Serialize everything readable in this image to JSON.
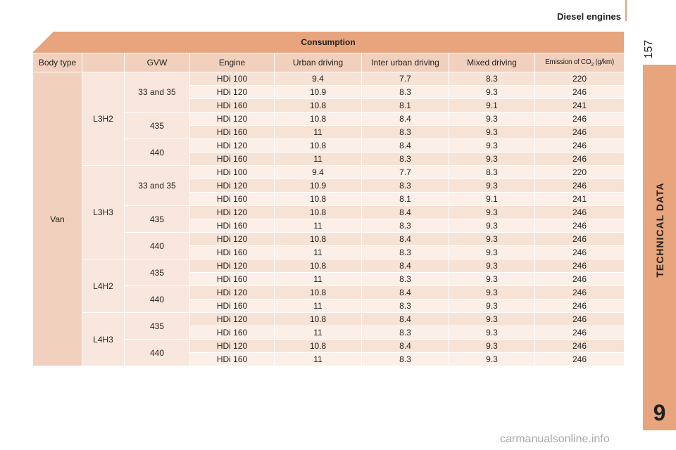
{
  "header": {
    "title": "Diesel engines",
    "page_number": "157"
  },
  "side_tab": {
    "label": "TECHNICAL DATA",
    "chapter": "9"
  },
  "table": {
    "title": "Consumption",
    "columns": [
      "Body type",
      "GVW",
      "Engine",
      "Urban driving",
      "Inter urban driving",
      "Mixed driving",
      "Emission of CO",
      "2",
      " (g/km)"
    ],
    "body_type": "Van",
    "groups": [
      {
        "length": "L3H2",
        "gvw": [
          {
            "label": "33 and 35",
            "rows": [
              [
                "HDi 100",
                "9.4",
                "7.7",
                "8.3",
                "220"
              ],
              [
                "HDi 120",
                "10.9",
                "8.3",
                "9.3",
                "246"
              ],
              [
                "HDi 160",
                "10.8",
                "8.1",
                "9.1",
                "241"
              ]
            ]
          },
          {
            "label": "435",
            "rows": [
              [
                "HDi 120",
                "10.8",
                "8.4",
                "9.3",
                "246"
              ],
              [
                "HDi 160",
                "11",
                "8.3",
                "9.3",
                "246"
              ]
            ]
          },
          {
            "label": "440",
            "rows": [
              [
                "HDi 120",
                "10.8",
                "8.4",
                "9.3",
                "246"
              ],
              [
                "HDi 160",
                "11",
                "8.3",
                "9.3",
                "246"
              ]
            ]
          }
        ]
      },
      {
        "length": "L3H3",
        "gvw": [
          {
            "label": "33 and 35",
            "rows": [
              [
                "HDi 100",
                "9.4",
                "7.7",
                "8.3",
                "220"
              ],
              [
                "HDi 120",
                "10.9",
                "8.3",
                "9.3",
                "246"
              ],
              [
                "HDi 160",
                "10.8",
                "8.1",
                "9.1",
                "241"
              ]
            ]
          },
          {
            "label": "435",
            "rows": [
              [
                "HDi 120",
                "10.8",
                "8.4",
                "9.3",
                "246"
              ],
              [
                "HDi 160",
                "11",
                "8.3",
                "9.3",
                "246"
              ]
            ]
          },
          {
            "label": "440",
            "rows": [
              [
                "HDi 120",
                "10.8",
                "8.4",
                "9.3",
                "246"
              ],
              [
                "HDi 160",
                "11",
                "8.3",
                "9.3",
                "246"
              ]
            ]
          }
        ]
      },
      {
        "length": "L4H2",
        "gvw": [
          {
            "label": "435",
            "rows": [
              [
                "HDi 120",
                "10.8",
                "8.4",
                "9.3",
                "246"
              ],
              [
                "HDi 160",
                "11",
                "8.3",
                "9.3",
                "246"
              ]
            ]
          },
          {
            "label": "440",
            "rows": [
              [
                "HDi 120",
                "10.8",
                "8.4",
                "9.3",
                "246"
              ],
              [
                "HDi 160",
                "11",
                "8.3",
                "9.3",
                "246"
              ]
            ]
          }
        ]
      },
      {
        "length": "L4H3",
        "gvw": [
          {
            "label": "435",
            "rows": [
              [
                "HDi 120",
                "10.8",
                "8.4",
                "9.3",
                "246"
              ],
              [
                "HDi 160",
                "11",
                "8.3",
                "9.3",
                "246"
              ]
            ]
          },
          {
            "label": "440",
            "rows": [
              [
                "HDi 120",
                "10.8",
                "8.4",
                "9.3",
                "246"
              ],
              [
                "HDi 160",
                "11",
                "8.3",
                "9.3",
                "246"
              ]
            ]
          }
        ]
      }
    ]
  },
  "watermark": "carmanualsonline.info"
}
